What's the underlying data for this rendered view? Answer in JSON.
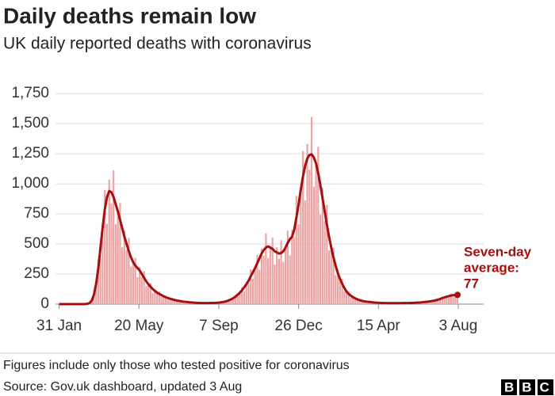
{
  "chart_data": {
    "type": "bar",
    "title": "Daily deaths remain low",
    "subtitle": "UK daily reported deaths with coronavirus",
    "annotation": [
      "Seven-day",
      "average:"
    ],
    "xlim": [
      -5,
      585
    ],
    "xticks": [
      {
        "value": 0,
        "label": "31 Jan"
      },
      {
        "value": 110,
        "label": "20 May"
      },
      {
        "value": 220,
        "label": "7 Sep"
      },
      {
        "value": 330,
        "label": "26 Dec"
      },
      {
        "value": 440,
        "label": "15 Apr"
      },
      {
        "value": 550,
        "label": "3 Aug"
      }
    ],
    "ylim": [
      0,
      1850
    ],
    "yticks": [
      0,
      250,
      500,
      750,
      {
        "value": 1000,
        "label": "1,000"
      },
      {
        "value": 1250,
        "label": "1,250"
      },
      {
        "value": 1500,
        "label": "1,500"
      },
      {
        "value": 1750,
        "label": "1,750"
      }
    ],
    "grid": true,
    "x": [
      0,
      3,
      6,
      9,
      12,
      15,
      18,
      21,
      24,
      27,
      30,
      33,
      36,
      39,
      42,
      45,
      48,
      51,
      54,
      57,
      60,
      63,
      66,
      69,
      72,
      75,
      78,
      81,
      84,
      87,
      90,
      93,
      96,
      99,
      102,
      105,
      108,
      111,
      114,
      117,
      120,
      123,
      126,
      129,
      132,
      135,
      138,
      141,
      144,
      147,
      150,
      153,
      156,
      159,
      162,
      165,
      168,
      171,
      174,
      177,
      180,
      183,
      186,
      189,
      192,
      195,
      198,
      201,
      204,
      207,
      210,
      213,
      216,
      219,
      222,
      225,
      228,
      231,
      234,
      237,
      240,
      243,
      246,
      249,
      252,
      255,
      258,
      261,
      264,
      267,
      270,
      273,
      276,
      279,
      282,
      285,
      288,
      291,
      294,
      297,
      300,
      303,
      306,
      309,
      312,
      315,
      318,
      321,
      324,
      327,
      330,
      333,
      336,
      339,
      342,
      345,
      348,
      351,
      354,
      357,
      360,
      363,
      366,
      369,
      372,
      375,
      378,
      381,
      384,
      387,
      390,
      393,
      396,
      399,
      402,
      405,
      408,
      411,
      414,
      417,
      420,
      423,
      426,
      429,
      432,
      435,
      438,
      441,
      444,
      447,
      450,
      453,
      456,
      459,
      462,
      465,
      468,
      471,
      474,
      477,
      480,
      483,
      486,
      489,
      492,
      495,
      498,
      501,
      504,
      507,
      510,
      513,
      516,
      519,
      522,
      525,
      528,
      531,
      534,
      537,
      540,
      543,
      546,
      549
    ],
    "series": [
      {
        "type": "bar",
        "color": "#eba4a4",
        "values": [
          0,
          0,
          0,
          0,
          0,
          0,
          0,
          0,
          0,
          0,
          0,
          0,
          1,
          3,
          12,
          22,
          88,
          153,
          375,
          376,
          640,
          948,
          668,
          1034,
          837,
          1113,
          664,
          770,
          840,
          473,
          616,
          450,
          550,
          312,
          350,
          384,
          225,
          308,
          225,
          275,
          152,
          165,
          174,
          94,
          121,
          86,
          106,
          60,
          65,
          70,
          38,
          50,
          36,
          44,
          24,
          27,
          29,
          16,
          21,
          15,
          19,
          11,
          12,
          13,
          8,
          11,
          8,
          11,
          7,
          10,
          12,
          8,
          12,
          11,
          18,
          14,
          20,
          30,
          24,
          44,
          45,
          78,
          62,
          95,
          138,
          105,
          182,
          176,
          288,
          212,
          300,
          408,
          285,
          462,
          405,
          588,
          384,
          470,
          552,
          330,
          473,
          378,
          531,
          352,
          470,
          612,
          405,
          616,
          558,
          900,
          664,
          950,
          1272,
          863,
          1331,
          1116,
          1556,
          976,
          1170,
          1308,
          743,
          968,
          693,
          825,
          448,
          470,
          468,
          240,
          286,
          189,
          213,
          108,
          105,
          102,
          53,
          64,
          43,
          50,
          26,
          28,
          29,
          16,
          21,
          15,
          19,
          10,
          12,
          13,
          8,
          10,
          8,
          10,
          6,
          8,
          10,
          6,
          9,
          7,
          8,
          11,
          7,
          10,
          12,
          8,
          13,
          12,
          18,
          13,
          18,
          24,
          17,
          28,
          25,
          40,
          30,
          43,
          60,
          42,
          68,
          60,
          89,
          59,
          76,
          92
        ]
      },
      {
        "type": "line",
        "color": "#a50f0f",
        "values": [
          0,
          0,
          0,
          0,
          0,
          0,
          0,
          0,
          0,
          0,
          0,
          0,
          1,
          3,
          10,
          30,
          80,
          170,
          300,
          470,
          640,
          790,
          890,
          940,
          930,
          890,
          830,
          770,
          700,
          630,
          560,
          500,
          440,
          390,
          350,
          320,
          300,
          280,
          250,
          220,
          190,
          165,
          145,
          125,
          110,
          95,
          85,
          75,
          65,
          58,
          50,
          45,
          40,
          35,
          30,
          27,
          24,
          21,
          19,
          17,
          15,
          14,
          12,
          11,
          10,
          10,
          9,
          9,
          9,
          10,
          10,
          10,
          11,
          12,
          14,
          17,
          20,
          25,
          32,
          40,
          50,
          62,
          78,
          95,
          115,
          140,
          165,
          195,
          230,
          265,
          300,
          340,
          380,
          420,
          450,
          470,
          480,
          470,
          460,
          440,
          430,
          420,
          425,
          440,
          470,
          510,
          540,
          560,
          620,
          720,
          830,
          950,
          1060,
          1150,
          1210,
          1240,
          1245,
          1220,
          1170,
          1090,
          990,
          880,
          770,
          660,
          560,
          470,
          390,
          320,
          260,
          210,
          170,
          135,
          105,
          85,
          70,
          58,
          48,
          40,
          33,
          28,
          24,
          21,
          19,
          17,
          15,
          13,
          12,
          11,
          10,
          9,
          9,
          8,
          8,
          8,
          8,
          8,
          8,
          8,
          9,
          9,
          9,
          10,
          10,
          11,
          12,
          13,
          14,
          16,
          18,
          20,
          22,
          25,
          28,
          32,
          37,
          43,
          50,
          56,
          62,
          67,
          71,
          74,
          76,
          77
        ]
      }
    ]
  },
  "footer": {
    "note": "Figures include only those who tested positive for coronavirus",
    "source": "Source: Gov.uk dashboard, updated 3 Aug",
    "logo": "BBC"
  }
}
